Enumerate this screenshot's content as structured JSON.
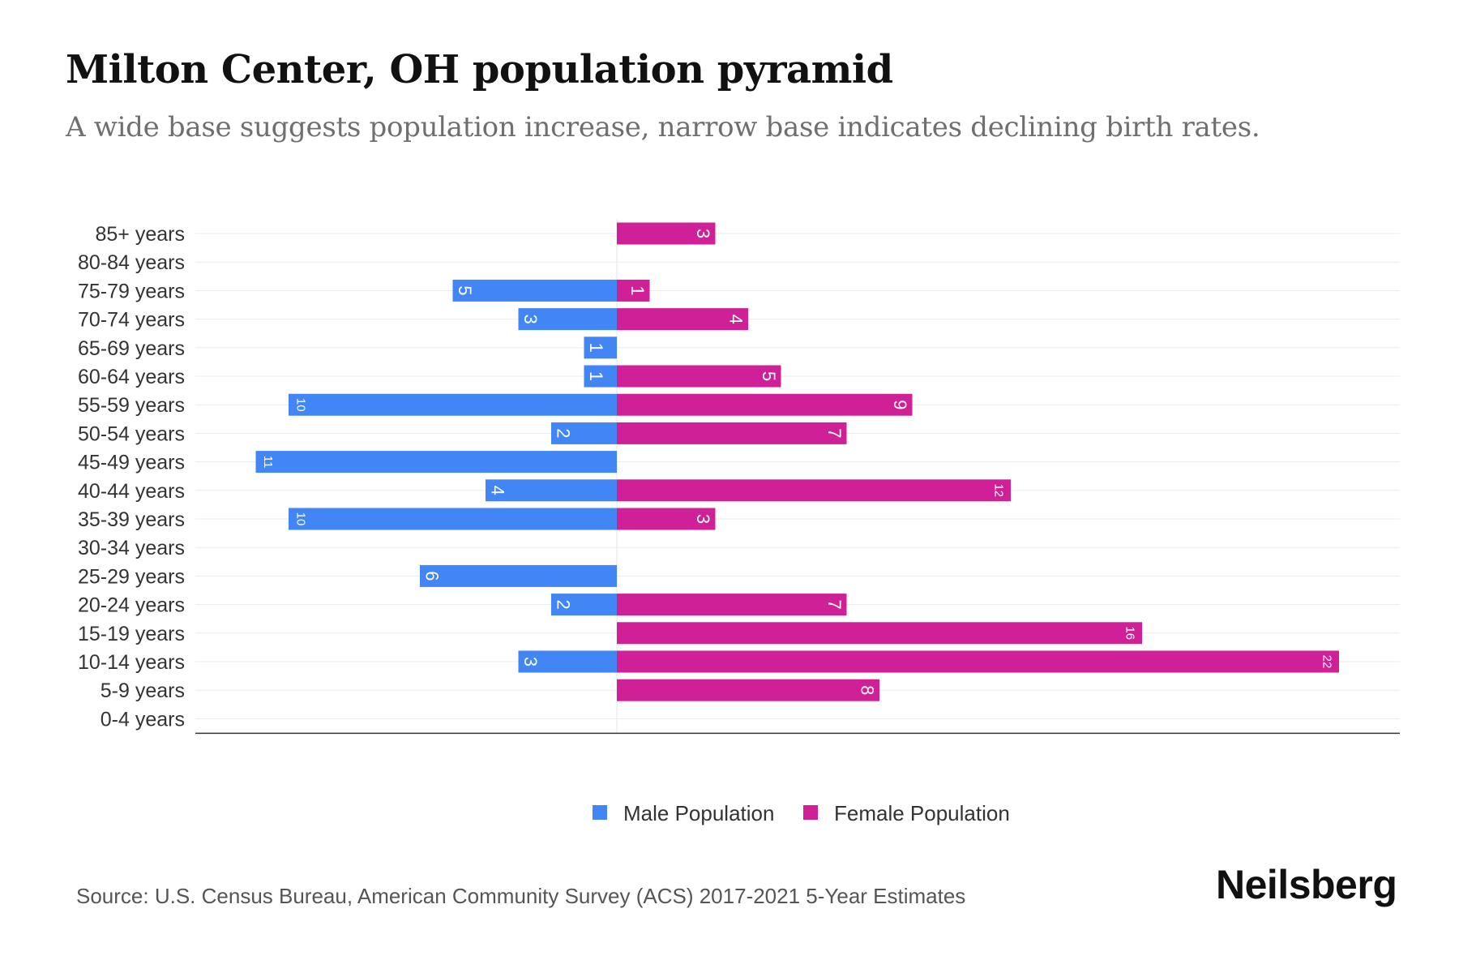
{
  "title": "Milton Center, OH population pyramid",
  "subtitle": "A wide base suggests population increase, narrow base indicates declining birth rates.",
  "source": "Source: U.S. Census Bureau, American Community Survey (ACS) 2017-2021 5-Year Estimates",
  "brand": "Neilsberg",
  "colors": {
    "male": "#4285f4",
    "female": "#cf2097"
  },
  "chart_data": {
    "type": "bar",
    "orientation": "horizontal-diverging",
    "title": "Milton Center, OH population pyramid",
    "categories": [
      "85+ years",
      "80-84 years",
      "75-79 years",
      "70-74 years",
      "65-69 years",
      "60-64 years",
      "55-59 years",
      "50-54 years",
      "45-49 years",
      "40-44 years",
      "35-39 years",
      "30-34 years",
      "25-29 years",
      "20-24 years",
      "15-19 years",
      "10-14 years",
      "5-9 years",
      "0-4 years"
    ],
    "series": [
      {
        "name": "Male Population",
        "values": [
          0,
          0,
          5,
          3,
          1,
          1,
          10,
          2,
          11,
          4,
          10,
          0,
          6,
          2,
          0,
          3,
          0,
          0
        ]
      },
      {
        "name": "Female Population",
        "values": [
          3,
          0,
          1,
          4,
          0,
          5,
          9,
          7,
          0,
          12,
          3,
          0,
          0,
          7,
          16,
          22,
          8,
          0
        ]
      }
    ],
    "xlim": [
      -13,
      24
    ],
    "legend": "bottom-center",
    "grid": true
  }
}
